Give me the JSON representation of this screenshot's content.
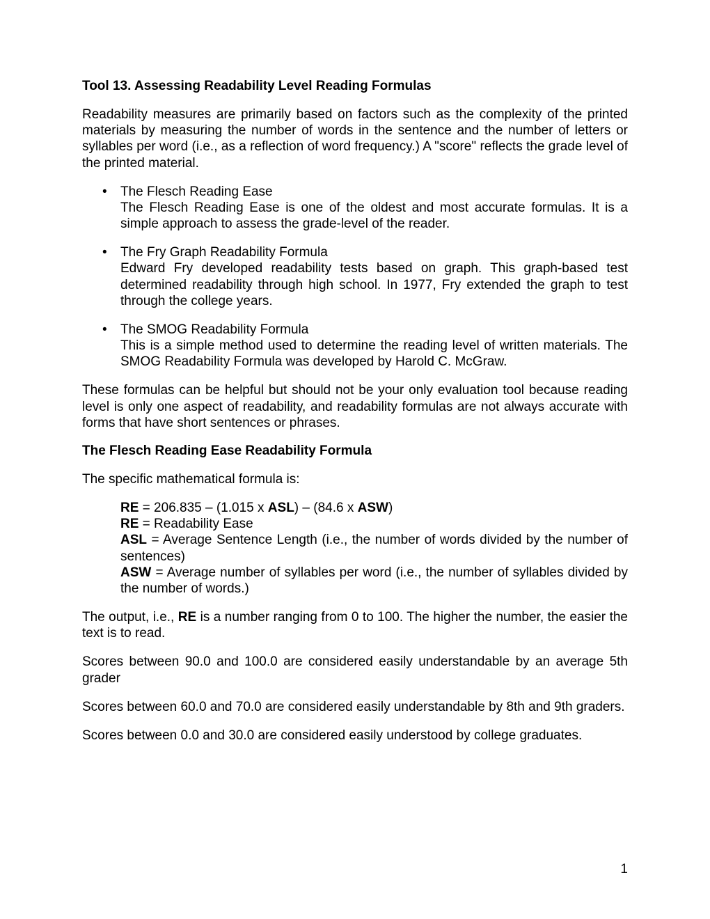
{
  "title": "Tool 13. Assessing Readability Level Reading Formulas",
  "intro": "Readability measures are primarily based on factors such as the complexity of the printed materials by measuring the number of words in the sentence and the number of letters or syllables per word (i.e., as a reflection of word frequency.)  A \"score\" reflects the grade level of the printed material.",
  "bullets": [
    {
      "heading": "The Flesch Reading Ease",
      "body": "The Flesch Reading Ease is one of the oldest and most accurate formulas. It is a simple approach to assess the grade-level of the reader."
    },
    {
      "heading": "The Fry Graph Readability Formula",
      "body": "Edward Fry developed readability tests based on graph. This graph-based test determined readability through high school. In 1977, Fry extended the graph to test through the college years."
    },
    {
      "heading": "The SMOG Readability Formula",
      "body": "This is a simple method used to determine the reading level of written materials. The SMOG Readability Formula was developed by Harold C. McGraw."
    }
  ],
  "caveat": "These formulas can be helpful but should not be your only evaluation tool because reading level is only one aspect of readability, and readability formulas are not always accurate with forms that have short sentences or phrases.",
  "flesch": {
    "title": "The Flesch Reading Ease Readability Formula",
    "intro": "The specific mathematical formula is:",
    "formula": {
      "eq_pre": "RE",
      "eq_mid": " = 206.835 – (1.015 x ",
      "eq_asl": "ASL",
      "eq_mid2": ") – (84.6 x ",
      "eq_asw": "ASW",
      "eq_end": ")",
      "re_label": "RE",
      "re_def": " = Readability Ease",
      "asl_label": "ASL",
      "asl_def": " = Average Sentence Length (i.e., the number of words divided by the number of sentences)",
      "asw_label": "ASW",
      "asw_def": " = Average number of syllables per word (i.e., the number of syllables divided by the number of words.)"
    },
    "output_pre": "The output, i.e., ",
    "output_bold": "RE",
    "output_post": " is a number ranging from 0 to 100. The higher the number, the easier the text is to read.",
    "score1": "Scores between 90.0 and 100.0 are considered easily understandable by an average 5th grader",
    "score2": "Scores between 60.0 and 70.0 are considered easily understandable by 8th and 9th graders.",
    "score3": "Scores between 0.0 and 30.0 are considered easily understood by college graduates."
  },
  "page_number": "1"
}
